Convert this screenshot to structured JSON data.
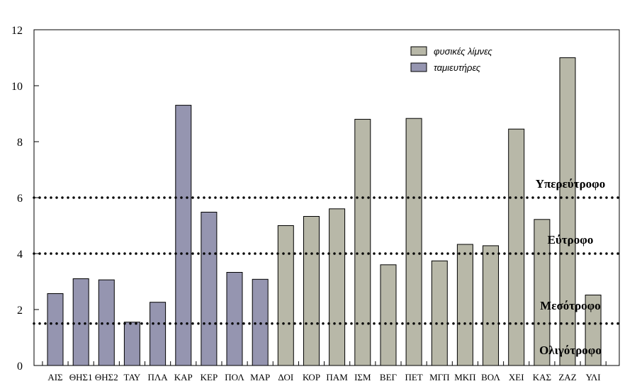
{
  "chart_data": {
    "type": "bar",
    "title": "",
    "xlabel": "",
    "ylabel": "",
    "ylim": [
      0,
      12
    ],
    "yticks": [
      0,
      2,
      4,
      6,
      8,
      10,
      12
    ],
    "grid": false,
    "legend_position": "top-right",
    "categories": [
      "ΑΙΣ",
      "ΘΗΣ1",
      "ΘΗΣ2",
      "ΤΑΥ",
      "ΠΛΑ",
      "ΚΑΡ",
      "ΚΕΡ",
      "ΠΟΛ",
      "ΜΑΡ",
      "ΔΟΙ",
      "ΚΟΡ",
      "ΠΑΜ",
      "ΙΣΜ",
      "ΒΕΓ",
      "ΠΕΤ",
      "ΜΓΠ",
      "ΜΚΠ",
      "ΒΟΛ",
      "ΧΕΙ",
      "ΚΑΣ",
      "ΖΑΖ",
      "ΥΛΙ"
    ],
    "values": [
      2.57,
      3.1,
      3.06,
      1.55,
      2.26,
      9.3,
      5.48,
      3.33,
      3.08,
      5.0,
      5.33,
      5.6,
      8.8,
      3.6,
      8.83,
      3.74,
      4.33,
      4.28,
      8.45,
      5.22,
      11.0,
      2.52
    ],
    "series_of_category": [
      1,
      1,
      1,
      1,
      1,
      1,
      1,
      1,
      1,
      0,
      0,
      0,
      0,
      0,
      0,
      0,
      0,
      0,
      0,
      0,
      0,
      0
    ],
    "series": [
      {
        "name": "φυσικές λίμνες",
        "color": "#b8b8a8"
      },
      {
        "name": "ταμιευτήρες",
        "color": "#9595b0"
      }
    ],
    "thresholds": [
      {
        "value": 6,
        "label": "Υπερεύτροφο"
      },
      {
        "value": 4,
        "label": "Εύτροφο"
      },
      {
        "value": 1.5,
        "label": "Μεσότροφο"
      }
    ],
    "zone_labels": [
      {
        "value": 6.35,
        "label": "Υπερεύτροφο"
      },
      {
        "value": 4.35,
        "label": "Εύτροφο"
      },
      {
        "value": 2.0,
        "label": "Μεσότροφο"
      },
      {
        "value": 0.4,
        "label": "Ολιγότροφο"
      }
    ]
  }
}
